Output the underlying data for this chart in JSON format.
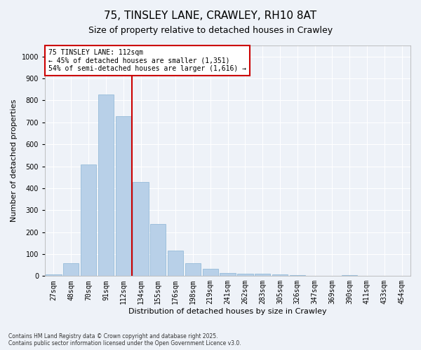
{
  "title": "75, TINSLEY LANE, CRAWLEY, RH10 8AT",
  "subtitle": "Size of property relative to detached houses in Crawley",
  "xlabel": "Distribution of detached houses by size in Crawley",
  "ylabel": "Number of detached properties",
  "categories": [
    "27sqm",
    "48sqm",
    "70sqm",
    "91sqm",
    "112sqm",
    "134sqm",
    "155sqm",
    "176sqm",
    "198sqm",
    "219sqm",
    "241sqm",
    "262sqm",
    "283sqm",
    "305sqm",
    "326sqm",
    "347sqm",
    "369sqm",
    "390sqm",
    "411sqm",
    "433sqm",
    "454sqm"
  ],
  "values": [
    8,
    60,
    507,
    828,
    727,
    428,
    238,
    117,
    57,
    32,
    14,
    10,
    12,
    7,
    3,
    0,
    0,
    5,
    0,
    0,
    0
  ],
  "bar_color": "#b8d0e8",
  "bar_edge_color": "#8ab4d4",
  "vline_index": 4,
  "vline_color": "#cc0000",
  "annotation_text": "75 TINSLEY LANE: 112sqm\n← 45% of detached houses are smaller (1,351)\n54% of semi-detached houses are larger (1,616) →",
  "annotation_box_color": "#cc0000",
  "annotation_text_color": "#000000",
  "ylim": [
    0,
    1050
  ],
  "yticks": [
    0,
    100,
    200,
    300,
    400,
    500,
    600,
    700,
    800,
    900,
    1000
  ],
  "background_color": "#eef2f8",
  "grid_color": "#ffffff",
  "footer": "Contains HM Land Registry data © Crown copyright and database right 2025.\nContains public sector information licensed under the Open Government Licence v3.0.",
  "title_fontsize": 11,
  "subtitle_fontsize": 9,
  "annotation_fontsize": 7,
  "ylabel_fontsize": 8,
  "xlabel_fontsize": 8,
  "tick_fontsize": 7
}
